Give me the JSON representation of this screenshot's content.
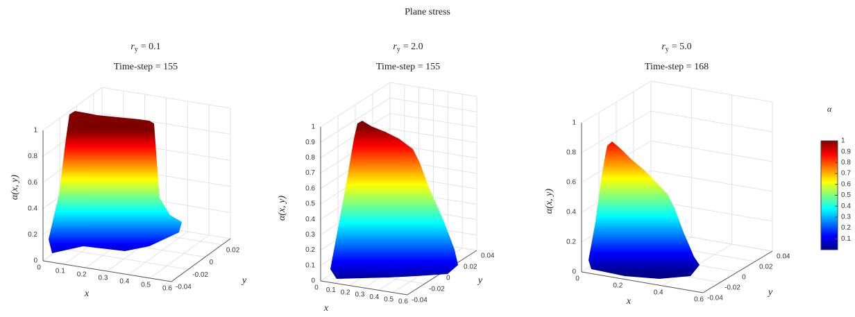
{
  "figure": {
    "title": "Plane stress",
    "colorbar": {
      "label": "α",
      "clim": [
        0,
        1
      ],
      "ticks": [
        0.1,
        0.2,
        0.3,
        0.4,
        0.5,
        0.6,
        0.7,
        0.8,
        0.9,
        1
      ],
      "colormap": "jet"
    }
  },
  "chart_data": [
    {
      "type": "surface",
      "title": {
        "symbol": "r",
        "subscript": "y",
        "value": "= 0.1"
      },
      "subtitle": "Time-step = 155",
      "zlabel": "α(x, y)",
      "xlabel": "x",
      "ylabel": "y",
      "grid": true,
      "xlim": [
        0,
        0.6
      ],
      "xticks": [
        0,
        0.1,
        0.2,
        0.3,
        0.4,
        0.5,
        0.6
      ],
      "ylim": [
        -0.04,
        0.03
      ],
      "yticks": [
        -0.04,
        -0.02,
        0,
        0.02
      ],
      "zlim": [
        0,
        1
      ],
      "zticks": [
        0,
        0.2,
        0.4,
        0.6,
        0.8,
        1
      ]
    },
    {
      "type": "surface",
      "title": {
        "symbol": "r",
        "subscript": "y",
        "value": "= 2.0"
      },
      "subtitle": "Time-step = 155",
      "zlabel": "α(x, y)",
      "xlabel": "x",
      "ylabel": "y",
      "grid": true,
      "xlim": [
        0,
        0.6
      ],
      "xticks": [
        0,
        0.1,
        0.2,
        0.3,
        0.4,
        0.5,
        0.6
      ],
      "ylim": [
        -0.04,
        0.04
      ],
      "yticks": [
        -0.04,
        -0.02,
        0,
        0.02,
        0.04
      ],
      "zlim": [
        0,
        1
      ],
      "zticks": [
        0,
        0.1,
        0.2,
        0.3,
        0.4,
        0.5,
        0.6,
        0.7,
        0.8,
        0.9,
        1
      ]
    },
    {
      "type": "surface",
      "title": {
        "symbol": "r",
        "subscript": "y",
        "value": "= 5.0"
      },
      "subtitle": "Time-step = 168",
      "zlabel": "α(x, y)",
      "xlabel": "x",
      "ylabel": "y",
      "grid": true,
      "xlim": [
        0,
        0.6
      ],
      "xticks": [
        0,
        0.2,
        0.4,
        0.6
      ],
      "ylim": [
        -0.04,
        0.04
      ],
      "yticks": [
        -0.04,
        -0.02,
        0,
        0.02,
        0.04
      ],
      "zlim": [
        0,
        1
      ],
      "zticks": [
        0,
        0.2,
        0.4,
        0.6,
        0.8,
        1
      ]
    }
  ]
}
